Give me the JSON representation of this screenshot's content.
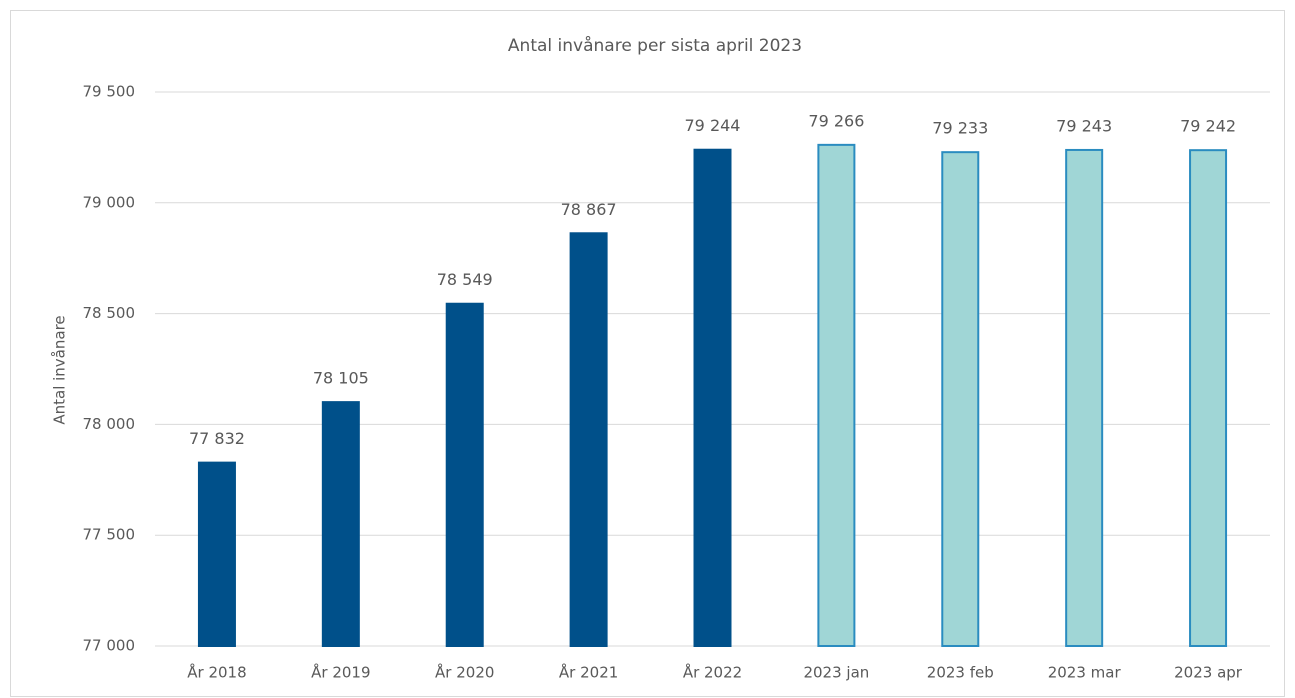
{
  "chart_data": {
    "type": "bar",
    "title": "Antal invånare per sista april 2023",
    "ylabel": "Antal invånare",
    "categories": [
      "År 2018",
      "År 2019",
      "År 2020",
      "År 2021",
      "År 2022",
      "2023 jan",
      "2023 feb",
      "2023 mar",
      "2023 apr"
    ],
    "values": [
      77832,
      78105,
      78549,
      78867,
      79244,
      79266,
      79233,
      79243,
      79242
    ],
    "value_labels": [
      "77 832",
      "78 105",
      "78 549",
      "78 867",
      "79 244",
      "79 266",
      "79 233",
      "79 243",
      "79 242"
    ],
    "colors": [
      "#00508a",
      "#00508a",
      "#00508a",
      "#00508a",
      "#00508a",
      "#a0d6d6",
      "#a0d6d6",
      "#a0d6d6",
      "#a0d6d6"
    ],
    "edgecolors": [
      "#00508a",
      "#00508a",
      "#00508a",
      "#00508a",
      "#00508a",
      "#2a8cc0",
      "#2a8cc0",
      "#2a8cc0",
      "#2a8cc0"
    ],
    "ylim": [
      77000,
      79500
    ],
    "yticks": [
      {
        "value": 77000,
        "label": "77 000"
      },
      {
        "value": 77500,
        "label": "77 500"
      },
      {
        "value": 78000,
        "label": "78 000"
      },
      {
        "value": 78500,
        "label": "78 500"
      },
      {
        "value": 79000,
        "label": "79 000"
      },
      {
        "value": 79500,
        "label": "79 500"
      }
    ],
    "grid": true
  }
}
